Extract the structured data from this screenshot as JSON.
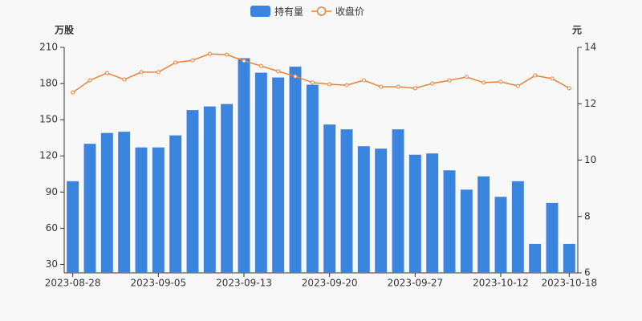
{
  "chart_data": {
    "type": "bar-line",
    "categories": [
      "2023-08-28",
      null,
      null,
      null,
      null,
      "2023-09-05",
      null,
      null,
      null,
      null,
      "2023-09-13",
      null,
      null,
      null,
      null,
      "2023-09-20",
      null,
      null,
      null,
      null,
      "2023-09-27",
      null,
      null,
      null,
      null,
      "2023-10-12",
      null,
      null,
      null,
      "2023-10-18"
    ],
    "y_label": "万股",
    "y2_label": "元",
    "ylim": [
      23,
      210
    ],
    "yticks": [
      30,
      60,
      90,
      120,
      150,
      180,
      210
    ],
    "y2lim": [
      6,
      14
    ],
    "y2ticks": [
      6,
      8,
      10,
      12,
      14
    ],
    "series": [
      {
        "name": "持有量",
        "type": "bar",
        "color": "#3a84e0",
        "values": [
          99,
          130,
          139,
          140,
          127,
          127,
          137,
          158,
          161,
          163,
          201,
          189,
          185,
          194,
          179,
          146,
          142,
          128,
          126,
          142,
          121,
          122,
          108,
          92,
          103,
          86,
          99,
          47,
          81,
          47
        ]
      },
      {
        "name": "收盘价",
        "type": "line",
        "axis": "y2",
        "color": "#e8823a",
        "values": [
          12.4,
          12.83,
          13.09,
          12.86,
          13.12,
          13.12,
          13.46,
          13.54,
          13.77,
          13.74,
          13.52,
          13.34,
          13.15,
          12.97,
          12.75,
          12.69,
          12.66,
          12.83,
          12.6,
          12.6,
          12.55,
          12.72,
          12.83,
          12.95,
          12.75,
          12.78,
          12.63,
          13.0,
          12.89,
          12.55
        ]
      }
    ]
  }
}
